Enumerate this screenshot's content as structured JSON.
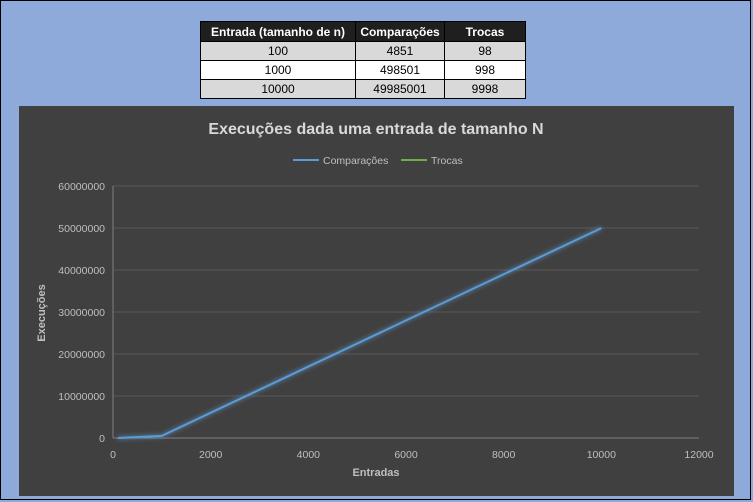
{
  "table": {
    "headers": [
      "Entrada (tamanho de n)",
      "Comparações",
      "Trocas"
    ],
    "rows": [
      [
        "100",
        "4851",
        "98"
      ],
      [
        "1000",
        "498501",
        "998"
      ],
      [
        "10000",
        "49985001",
        "9998"
      ]
    ]
  },
  "chart_data": {
    "type": "line",
    "title": "Execuções dada uma entrada de tamanho N",
    "xlabel": "Entradas",
    "ylabel": "Execuções",
    "xlim": [
      0,
      12000
    ],
    "ylim": [
      0,
      60000000
    ],
    "x_ticks": [
      "0",
      "2000",
      "4000",
      "6000",
      "8000",
      "10000",
      "12000"
    ],
    "y_ticks": [
      "0",
      "10000000",
      "20000000",
      "30000000",
      "40000000",
      "50000000",
      "60000000"
    ],
    "grid": true,
    "legend_position": "top",
    "series": [
      {
        "name": "Comparações",
        "color": "#5b9bd5",
        "x": [
          100,
          1000,
          10000
        ],
        "y": [
          4851,
          498501,
          49985001
        ]
      },
      {
        "name": "Trocas",
        "color": "#70ad47",
        "x": [
          100,
          1000,
          10000
        ],
        "y": [
          98,
          998,
          9998
        ]
      }
    ],
    "background": "#404040"
  }
}
